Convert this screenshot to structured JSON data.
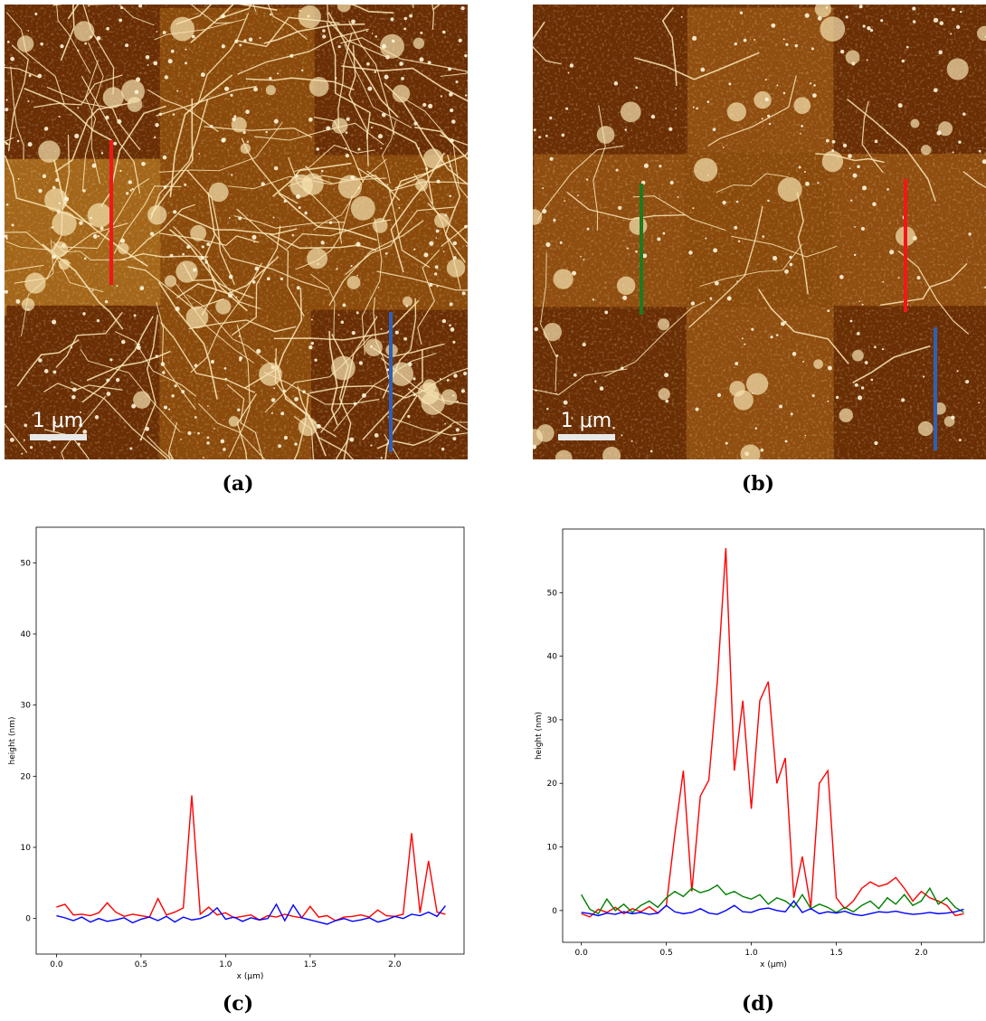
{
  "panels": {
    "a": {
      "label": "(a)",
      "scale_bar": "1 μm"
    },
    "b": {
      "label": "(b)",
      "scale_bar": "1 μm"
    },
    "c": {
      "label": "(c)"
    },
    "d": {
      "label": "(d)"
    }
  },
  "chart_data": [
    {
      "type": "line",
      "x_label": "x (μm)",
      "y_label": "height (nm)",
      "x": [
        0,
        0.05,
        0.1,
        0.15,
        0.2,
        0.25,
        0.3,
        0.35,
        0.4,
        0.45,
        0.5,
        0.55,
        0.6,
        0.65,
        0.7,
        0.75,
        0.8,
        0.85,
        0.9,
        0.95,
        1.0,
        1.05,
        1.1,
        1.15,
        1.2,
        1.25,
        1.3,
        1.35,
        1.4,
        1.45,
        1.5,
        1.55,
        1.6,
        1.65,
        1.7,
        1.75,
        1.8,
        1.85,
        1.9,
        1.95,
        2.0,
        2.05,
        2.1,
        2.15,
        2.2,
        2.25,
        2.3
      ],
      "xlim": [
        -0.12,
        2.41
      ],
      "xticks": [
        {
          "value": 0,
          "label": "0.0"
        },
        0.5,
        {
          "value": 1,
          "label": "1.0"
        },
        1.5,
        {
          "value": 2,
          "label": "2.0"
        }
      ],
      "ylim": [
        -5,
        55
      ],
      "yticks": [
        0,
        10,
        20,
        30,
        40,
        50
      ],
      "series": [
        {
          "color": "#ff0000",
          "values": [
            1.6,
            2.0,
            0.5,
            0.6,
            0.4,
            0.8,
            2.2,
            0.9,
            0.3,
            0.6,
            0.4,
            0.2,
            2.8,
            0.5,
            0.9,
            1.5,
            17.3,
            0.6,
            1.6,
            0.5,
            0.8,
            0.1,
            0.3,
            0.5,
            -0.2,
            0.4,
            0.2,
            0.6,
            0.3,
            0.1,
            1.7,
            0.2,
            0.4,
            -0.3,
            0.2,
            0.3,
            0.5,
            0.2,
            1.2,
            0.4,
            0.3,
            0.6,
            12.0,
            0.8,
            8.1,
            0.9,
            0.6
          ]
        },
        {
          "color": "#0000ff",
          "values": [
            0.4,
            0.1,
            -0.3,
            0.2,
            -0.5,
            0.0,
            -0.4,
            -0.2,
            0.1,
            -0.6,
            -0.1,
            0.2,
            -0.3,
            0.3,
            -0.5,
            0.2,
            -0.2,
            0.0,
            0.5,
            1.5,
            -0.1,
            0.2,
            -0.4,
            0.1,
            -0.2,
            0.0,
            2.0,
            -0.3,
            1.9,
            0.1,
            -0.2,
            -0.5,
            -0.8,
            -0.3,
            0.0,
            -0.4,
            -0.2,
            0.1,
            -0.5,
            -0.2,
            0.3,
            0.0,
            0.6,
            0.4,
            0.9,
            0.3,
            1.8
          ]
        }
      ]
    },
    {
      "type": "line",
      "x_label": "x (μm)",
      "y_label": "height (nm)",
      "x": [
        0,
        0.05,
        0.1,
        0.15,
        0.2,
        0.25,
        0.3,
        0.35,
        0.4,
        0.45,
        0.5,
        0.55,
        0.6,
        0.65,
        0.7,
        0.75,
        0.8,
        0.85,
        0.9,
        0.95,
        1.0,
        1.05,
        1.1,
        1.15,
        1.2,
        1.25,
        1.3,
        1.35,
        1.4,
        1.45,
        1.5,
        1.55,
        1.6,
        1.65,
        1.7,
        1.75,
        1.8,
        1.85,
        1.9,
        1.95,
        2.0,
        2.05,
        2.1,
        2.15,
        2.2,
        2.25
      ],
      "xlim": [
        -0.11,
        2.37
      ],
      "xticks": [
        {
          "value": 0,
          "label": "0.0"
        },
        0.5,
        {
          "value": 1,
          "label": "1.0"
        },
        1.5,
        {
          "value": 2,
          "label": "2.0"
        }
      ],
      "ylim": [
        -5,
        60
      ],
      "yticks": [
        0,
        10,
        20,
        30,
        40,
        50
      ],
      "series": [
        {
          "color": "#ff0000",
          "values": [
            -0.5,
            -1.0,
            0.2,
            -0.3,
            0.5,
            -0.5,
            0.3,
            -0.2,
            0.6,
            -0.4,
            0.8,
            12,
            22,
            3,
            18,
            20.5,
            36,
            57,
            22,
            33,
            16,
            33,
            36,
            20,
            24,
            2,
            8.5,
            0.5,
            20,
            22,
            2,
            0.3,
            1.5,
            3.5,
            4.5,
            3.8,
            4.2,
            5.2,
            3.5,
            1.5,
            3.0,
            2.0,
            1.5,
            0.8,
            -0.8,
            -0.5
          ]
        },
        {
          "color": "#008000",
          "values": [
            2.5,
            0.2,
            -0.5,
            1.8,
            0.0,
            1.0,
            -0.3,
            0.8,
            1.5,
            0.5,
            2.0,
            3.0,
            2.2,
            3.5,
            2.8,
            3.2,
            4.0,
            2.5,
            3.0,
            2.2,
            1.8,
            2.5,
            1.0,
            2.0,
            1.5,
            0.5,
            2.5,
            0.3,
            1.0,
            0.5,
            -0.3,
            0.5,
            -0.2,
            0.8,
            1.5,
            0.3,
            2.0,
            1.0,
            2.5,
            0.8,
            1.5,
            3.5,
            1.0,
            2.0,
            0.5,
            -0.3
          ]
        },
        {
          "color": "#0000ff",
          "values": [
            -0.3,
            -0.5,
            -0.8,
            -0.4,
            -0.6,
            -0.2,
            -0.5,
            -0.3,
            -0.6,
            -0.4,
            0.8,
            -0.2,
            -0.5,
            -0.3,
            0.3,
            -0.4,
            -0.6,
            0.0,
            0.8,
            -0.2,
            -0.3,
            0.2,
            0.4,
            0.0,
            -0.2,
            1.5,
            -0.3,
            0.3,
            -0.5,
            -0.2,
            -0.4,
            -0.1,
            -0.6,
            -0.8,
            -0.5,
            -0.2,
            -0.3,
            -0.1,
            -0.4,
            -0.6,
            -0.5,
            -0.3,
            -0.5,
            -0.4,
            -0.2,
            0.2
          ]
        }
      ]
    }
  ]
}
